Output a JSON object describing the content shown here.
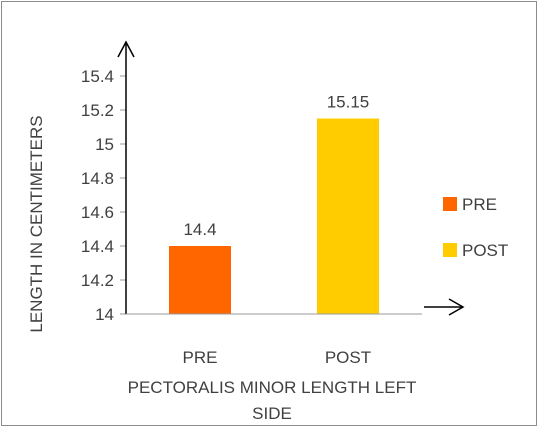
{
  "chart_data": {
    "type": "bar",
    "title": "",
    "xlabel": "PECTORALIS MINOR LENGTH LEFT SIDE",
    "ylabel": "LENGTH IN CENTIMETERS",
    "categories": [
      "PRE",
      "POST"
    ],
    "values": [
      14.4,
      15.15
    ],
    "data_labels": [
      "14.4",
      "15.15"
    ],
    "bar_colors": [
      "#FF6600",
      "#FFCC00"
    ],
    "ylim": [
      14,
      15.4
    ],
    "yticks": [
      14,
      14.2,
      14.4,
      14.6,
      14.8,
      15,
      15.2,
      15.4
    ],
    "ytick_labels": [
      "14",
      "14.2",
      "14.4",
      "14.6",
      "14.8",
      "15",
      "15.2",
      "15.4"
    ],
    "grid": false,
    "legend": {
      "position": "right",
      "entries": [
        {
          "label": "PRE",
          "color": "#FF6600"
        },
        {
          "label": "POST",
          "color": "#FFCC00"
        }
      ]
    }
  }
}
